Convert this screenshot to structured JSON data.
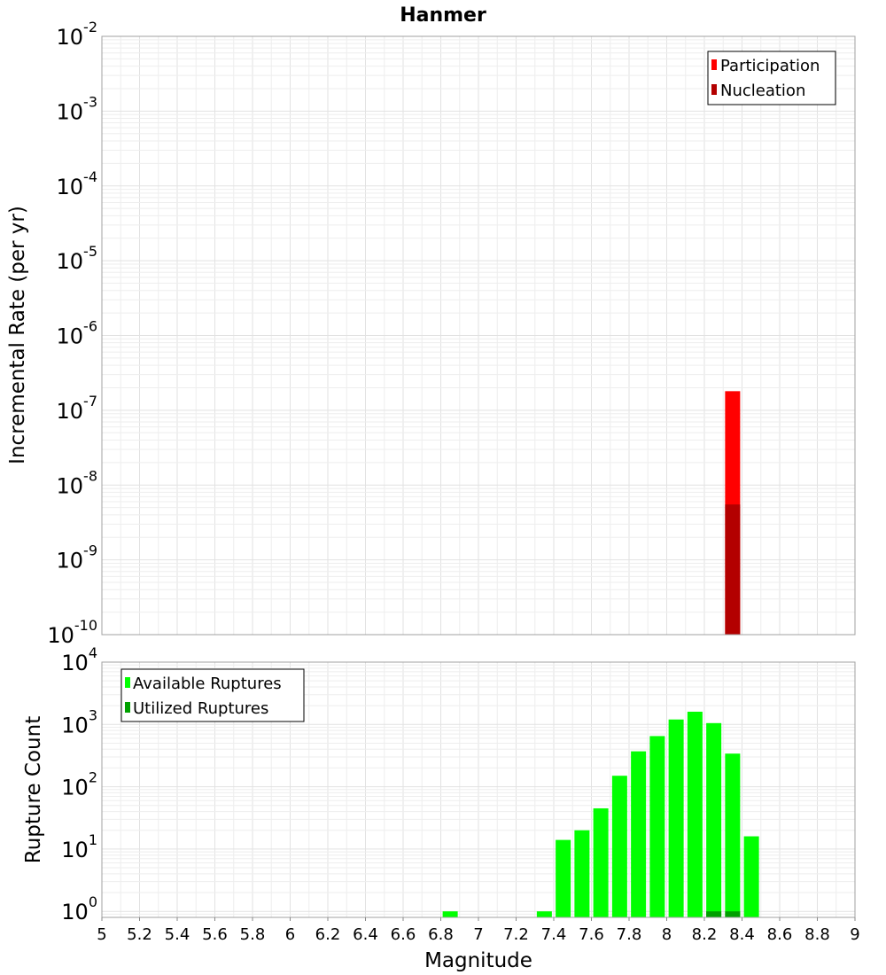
{
  "title": "Hanmer",
  "chart_data": [
    {
      "type": "bar",
      "ylabel": "Incremental Rate (per yr)",
      "yscale": "log",
      "ylim": [
        1e-10,
        0.01
      ],
      "xlim": [
        5,
        9
      ],
      "legend_position": "top-right",
      "series": [
        {
          "name": "Participation",
          "color": "#ff0000",
          "bars": [
            {
              "x": 8.35,
              "value": 1.8e-07
            }
          ]
        },
        {
          "name": "Nucleation",
          "color": "#b30000",
          "bars": [
            {
              "x": 8.35,
              "value": 5.5e-09
            }
          ]
        }
      ],
      "yticks": [
        {
          "base": "10",
          "exp": "-2",
          "value": 0.01
        },
        {
          "base": "10",
          "exp": "-3",
          "value": 0.001
        },
        {
          "base": "10",
          "exp": "-4",
          "value": 0.0001
        },
        {
          "base": "10",
          "exp": "-5",
          "value": 1e-05
        },
        {
          "base": "10",
          "exp": "-6",
          "value": 1e-06
        },
        {
          "base": "10",
          "exp": "-7",
          "value": 1e-07
        },
        {
          "base": "10",
          "exp": "-8",
          "value": 1e-08
        },
        {
          "base": "10",
          "exp": "-9",
          "value": 1e-09
        },
        {
          "base": "10",
          "exp": "-10",
          "value": 1e-10
        }
      ]
    },
    {
      "type": "bar",
      "xlabel": "Magnitude",
      "ylabel": "Rupture Count",
      "yscale": "log",
      "ylim": [
        0.8,
        10000
      ],
      "xlim": [
        5,
        9
      ],
      "legend_position": "top-left",
      "series": [
        {
          "name": "Available Ruptures",
          "color": "#00ff00",
          "bars": [
            {
              "x": 6.85,
              "value": 1
            },
            {
              "x": 7.35,
              "value": 1
            },
            {
              "x": 7.45,
              "value": 14
            },
            {
              "x": 7.55,
              "value": 20
            },
            {
              "x": 7.65,
              "value": 45
            },
            {
              "x": 7.75,
              "value": 150
            },
            {
              "x": 7.85,
              "value": 370
            },
            {
              "x": 7.95,
              "value": 650
            },
            {
              "x": 8.05,
              "value": 1200
            },
            {
              "x": 8.15,
              "value": 1600
            },
            {
              "x": 8.25,
              "value": 1050
            },
            {
              "x": 8.35,
              "value": 340
            },
            {
              "x": 8.45,
              "value": 16
            }
          ]
        },
        {
          "name": "Utilized Ruptures",
          "color": "#00a000",
          "bars": [
            {
              "x": 8.25,
              "value": 1
            },
            {
              "x": 8.35,
              "value": 1
            }
          ]
        }
      ],
      "yticks": [
        {
          "base": "10",
          "exp": "4",
          "value": 10000
        },
        {
          "base": "10",
          "exp": "3",
          "value": 1000
        },
        {
          "base": "10",
          "exp": "2",
          "value": 100
        },
        {
          "base": "10",
          "exp": "1",
          "value": 10
        },
        {
          "base": "10",
          "exp": "0",
          "value": 1
        }
      ],
      "xticks": [
        "5",
        "5.2",
        "5.4",
        "5.6",
        "5.8",
        "6",
        "6.2",
        "6.4",
        "6.6",
        "6.8",
        "7",
        "7.2",
        "7.4",
        "7.6",
        "7.8",
        "8",
        "8.2",
        "8.4",
        "8.6",
        "8.8",
        "9"
      ]
    }
  ]
}
